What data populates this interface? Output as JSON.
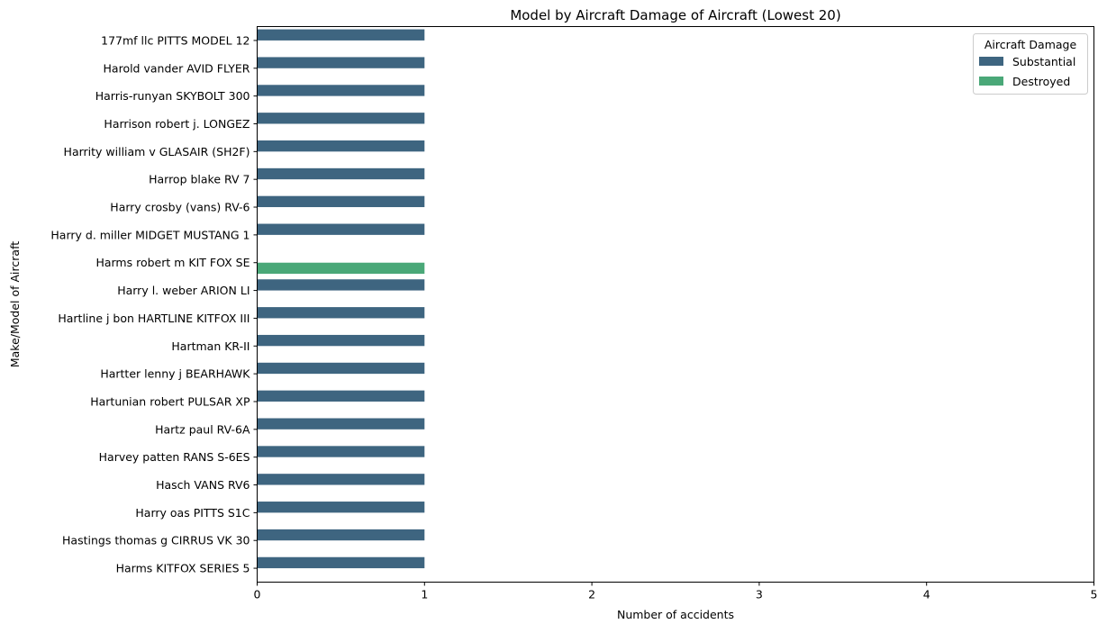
{
  "chart_data": {
    "type": "bar",
    "orientation": "horizontal",
    "title": "Model by Aircraft Damage of Aircraft (Lowest 20)",
    "xlabel": "Number of accidents",
    "ylabel": "Make/Model of Aircraft",
    "xlim": [
      0,
      5
    ],
    "xticks": [
      "0",
      "1",
      "2",
      "3",
      "4",
      "5"
    ],
    "grid": false,
    "legend": {
      "title": "Aircraft Damage",
      "position": "top-right"
    },
    "categories": [
      "177mf llc PITTS MODEL 12",
      "Harold vander AVID FLYER",
      "Harris-runyan SKYBOLT 300",
      "Harrison robert j. LONGEZ",
      "Harrity william v GLASAIR (SH2F)",
      "Harrop blake RV 7",
      "Harry crosby (vans) RV-6",
      "Harry d. miller MIDGET MUSTANG 1",
      "Harms robert m KIT FOX SE",
      "Harry l. weber ARION LI",
      "Hartline j bon HARTLINE KITFOX III",
      "Hartman KR-II",
      "Hartter lenny j BEARHAWK",
      "Hartunian robert PULSAR XP",
      "Hartz paul RV-6A",
      "Harvey patten RANS S-6ES",
      "Hasch VANS RV6",
      "Harry oas PITTS S1C",
      "Hastings thomas g CIRRUS VK 30",
      "Harms KITFOX SERIES 5"
    ],
    "series": [
      {
        "name": "Substantial",
        "color": "#3e6580",
        "values": [
          1,
          1,
          1,
          1,
          1,
          1,
          1,
          1,
          null,
          1,
          1,
          1,
          1,
          1,
          1,
          1,
          1,
          1,
          1,
          1
        ]
      },
      {
        "name": "Destroyed",
        "color": "#4aa878",
        "values": [
          null,
          null,
          null,
          null,
          null,
          null,
          null,
          null,
          1,
          null,
          null,
          null,
          null,
          null,
          null,
          null,
          null,
          null,
          null,
          null
        ]
      }
    ]
  }
}
